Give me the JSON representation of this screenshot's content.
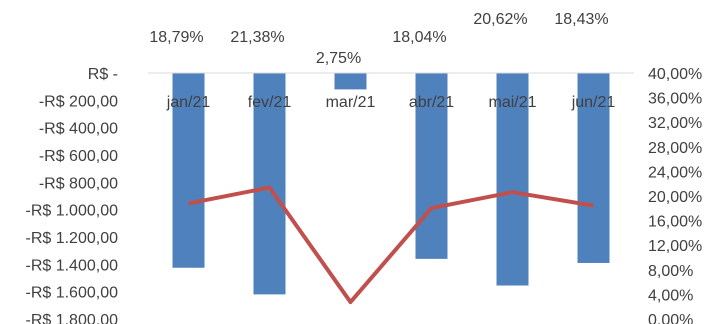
{
  "chart_data": {
    "type": "bar",
    "categories": [
      "jan/21",
      "fev/21",
      "mar/21",
      "abr/21",
      "mai/21",
      "jun/21"
    ],
    "series": [
      {
        "type": "bar",
        "axis": "left",
        "values": [
          -1425,
          -1620,
          -120,
          -1360,
          -1555,
          -1390
        ]
      },
      {
        "type": "line",
        "axis": "right",
        "values": [
          18.79,
          21.38,
          2.75,
          18.04,
          20.62,
          18.43
        ],
        "data_labels": [
          "18,79%",
          "21,38%",
          "2,75%",
          "18,04%",
          "20,62%",
          "18,43%"
        ]
      }
    ],
    "left_axis": {
      "ylim": [
        -1800,
        0
      ],
      "tick_labels": [
        "R$ -",
        "-R$ 200,00",
        "-R$ 400,00",
        "-R$ 600,00",
        "-R$ 800,00",
        "-R$ 1.000,00",
        "-R$ 1.200,00",
        "-R$ 1.400,00",
        "-R$ 1.600,00",
        "-R$ 1.800,00"
      ]
    },
    "right_axis": {
      "ylim": [
        0,
        40
      ],
      "tick_labels": [
        "40,00%",
        "36,00%",
        "32,00%",
        "28,00%",
        "24,00%",
        "20,00%",
        "16,00%",
        "12,00%",
        "8,00%",
        "4,00%",
        "0,00%"
      ]
    },
    "grid": false,
    "legend": "none",
    "colors": {
      "bar": "#4f81bd",
      "line": "#c0504d",
      "axis": "#d9d9d9",
      "text": "#404040"
    }
  }
}
